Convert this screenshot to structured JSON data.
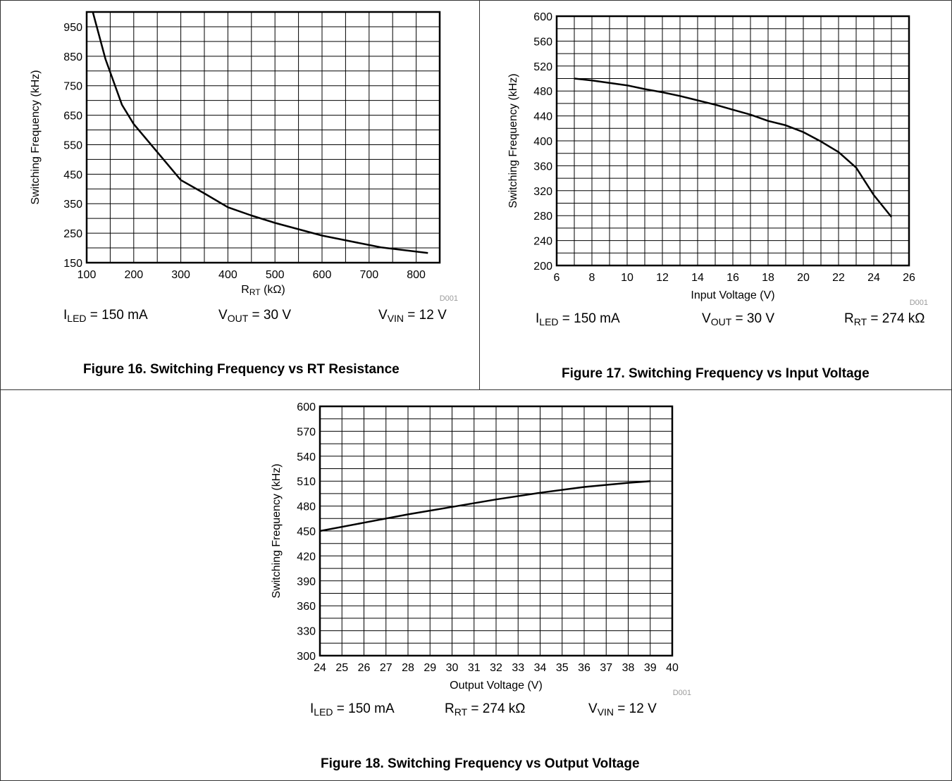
{
  "chart_data": [
    {
      "type": "line",
      "caption": "Figure 16. Switching Frequency vs RT Resistance",
      "xlabel": "RRT (kΩ)",
      "xlabel_main": "R",
      "xlabel_sub": "RT",
      "xlabel_rest": " (kΩ)",
      "ylabel": "Switching Frequency (kHz)",
      "xlim": [
        100,
        850
      ],
      "ylim": [
        150,
        1000
      ],
      "xticks": [
        100,
        200,
        300,
        400,
        500,
        600,
        700,
        800
      ],
      "yticks": [
        150,
        250,
        350,
        450,
        550,
        650,
        750,
        850,
        950
      ],
      "x_grid_step": 50,
      "y_grid_step": 50,
      "grid": true,
      "code": "D001",
      "series": [
        {
          "x": [
            113,
            140,
            175,
            200,
            250,
            300,
            350,
            400,
            450,
            500,
            600,
            700,
            725,
            825
          ],
          "y": [
            1000,
            840,
            685,
            620,
            525,
            430,
            385,
            338,
            310,
            285,
            242,
            210,
            202,
            183
          ]
        }
      ],
      "conditions": [
        {
          "main": "I",
          "sub": "LED",
          "rest": " = 150 mA"
        },
        {
          "main": "V",
          "sub": "OUT",
          "rest": " = 30 V"
        },
        {
          "main": "V",
          "sub": "VIN",
          "rest": " = 12 V"
        }
      ]
    },
    {
      "type": "line",
      "caption": "Figure 17. Switching Frequency vs Input Voltage",
      "xlabel": "Input Voltage (V)",
      "ylabel": "Switching Frequency (kHz)",
      "xlim": [
        6,
        26
      ],
      "ylim": [
        200,
        600
      ],
      "xticks": [
        6,
        8,
        10,
        12,
        14,
        16,
        18,
        20,
        22,
        24,
        26
      ],
      "yticks": [
        200,
        240,
        280,
        320,
        360,
        400,
        440,
        480,
        520,
        560,
        600
      ],
      "x_grid_step": 1,
      "y_grid_step": 20,
      "grid": true,
      "code": "D001",
      "series": [
        {
          "x": [
            7,
            8,
            9,
            10,
            11,
            12,
            13,
            14,
            15,
            16,
            17,
            18,
            19,
            20,
            21,
            22,
            23,
            24,
            25
          ],
          "y": [
            500,
            497,
            493,
            489,
            483,
            478,
            472,
            465,
            458,
            450,
            442,
            432,
            425,
            414,
            399,
            382,
            357,
            313,
            278
          ]
        }
      ],
      "conditions": [
        {
          "main": "I",
          "sub": "LED",
          "rest": " = 150 mA"
        },
        {
          "main": "V",
          "sub": "OUT",
          "rest": " = 30 V"
        },
        {
          "main": "R",
          "sub": "RT",
          "rest": " = 274 kΩ"
        }
      ]
    },
    {
      "type": "line",
      "caption": "Figure 18. Switching Frequency vs Output Voltage",
      "xlabel": "Output Voltage (V)",
      "ylabel": "Switching Frequency (kHz)",
      "xlim": [
        24,
        40
      ],
      "ylim": [
        300,
        600
      ],
      "xticks": [
        24,
        25,
        26,
        27,
        28,
        29,
        30,
        31,
        32,
        33,
        34,
        35,
        36,
        37,
        38,
        39,
        40
      ],
      "yticks": [
        300,
        330,
        360,
        390,
        420,
        450,
        480,
        510,
        540,
        570,
        600
      ],
      "x_grid_step": 1,
      "y_grid_step": 15,
      "grid": true,
      "code": "D001",
      "series": [
        {
          "x": [
            24,
            26,
            28,
            30,
            32,
            34,
            36,
            38,
            39
          ],
          "y": [
            450,
            460,
            470,
            479,
            488,
            496,
            503,
            508,
            510
          ]
        }
      ],
      "conditions": [
        {
          "main": "I",
          "sub": "LED",
          "rest": " = 150 mA"
        },
        {
          "main": "R",
          "sub": "RT",
          "rest": " = 274 kΩ"
        },
        {
          "main": "V",
          "sub": "VIN",
          "rest": " = 12 V"
        }
      ]
    }
  ]
}
